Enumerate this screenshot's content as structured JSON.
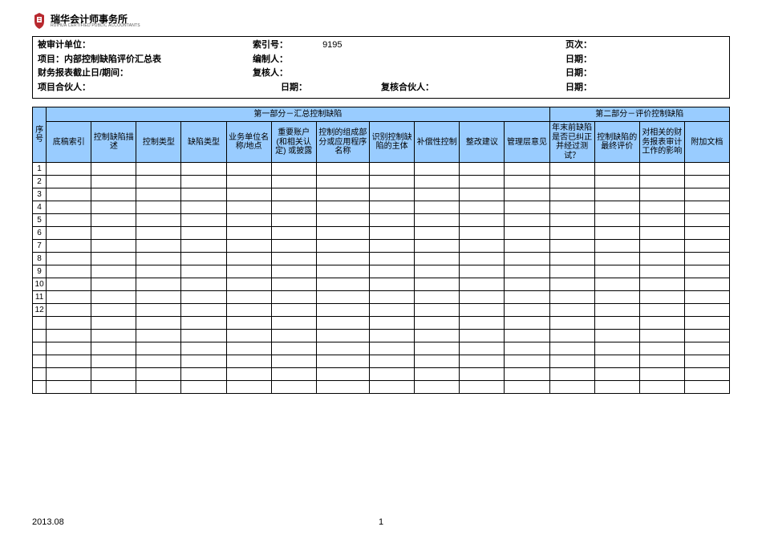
{
  "logo": {
    "cn": "瑞华会计师事务所",
    "en": "RUIHUA CERTIFIED PUBLIC ACCOUNTANTS",
    "icon_color": "#b8292f"
  },
  "info": {
    "audited_unit_label": "被审计单位：",
    "index_label": "索引号：",
    "index_value": "9195",
    "page_label": "页次：",
    "project_label": "项目：",
    "project_value": "内部控制缺陷评价汇总表",
    "preparer_label": "编制人：",
    "date_label_1": "日期：",
    "fs_date_label": "财务报表截止日/期间：",
    "reviewer_label": "复核人：",
    "date_label_2": "日期：",
    "partner_label": "项目合伙人：",
    "date_label_3": "日期：",
    "review_partner_label": "复核合伙人：",
    "date_label_4": "日期："
  },
  "table": {
    "section1_title": "第一部分－汇总控制缺陷",
    "section2_title": "第二部分－评价控制缺陷",
    "headers": [
      "序号",
      "底稿索引",
      "控制缺陷描述",
      "控制类型",
      "缺陷类型",
      "业务单位名称/地点",
      "重要账户(和相关认定) 或披露",
      "控制的组成部分或应用程序名称",
      "识别控制缺陷的主体",
      "补偿性控制",
      "整改建议",
      "管理层意见",
      "年末前缺陷是否已纠正并经过测试？",
      "控制缺陷的最终评价",
      "对相关的财务报表审计工作的影响",
      "附加文档"
    ],
    "numbered_rows": [
      "1",
      "2",
      "3",
      "4",
      "5",
      "6",
      "7",
      "8",
      "9",
      "10",
      "11",
      "12"
    ],
    "blank_rows": 6,
    "col_count": 16,
    "header_bg": "#99ccff"
  },
  "footer": {
    "date": "2013.08",
    "page": "1"
  }
}
